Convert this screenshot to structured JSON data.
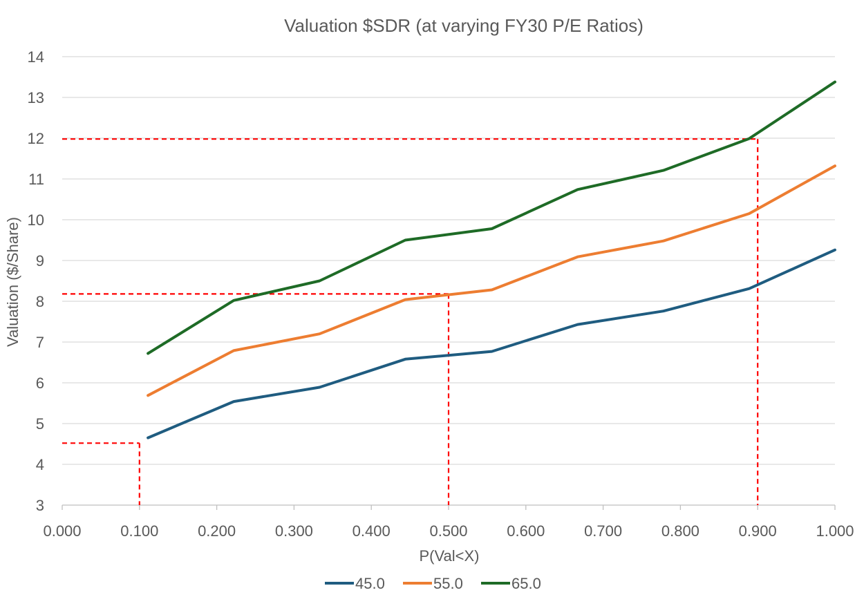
{
  "chart_data": {
    "type": "line",
    "title": "Valuation  $SDR (at varying FY30 P/E Ratios)",
    "xlabel": "P(Val<X)",
    "ylabel": "Valuation ($/Share)",
    "xlim": [
      0,
      1
    ],
    "ylim": [
      3,
      14
    ],
    "xticks": [
      0.0,
      0.1,
      0.2,
      0.3,
      0.4,
      0.5,
      0.6,
      0.7,
      0.8,
      0.9,
      1.0
    ],
    "xtick_labels": [
      "0.000",
      "0.100",
      "0.200",
      "0.300",
      "0.400",
      "0.500",
      "0.600",
      "0.700",
      "0.800",
      "0.900",
      "1.000"
    ],
    "yticks": [
      3,
      4,
      5,
      6,
      7,
      8,
      9,
      10,
      11,
      12,
      13,
      14
    ],
    "ytick_labels": [
      "3",
      "4",
      "5",
      "6",
      "7",
      "8",
      "9",
      "10",
      "11",
      "12",
      "13",
      "14"
    ],
    "x": [
      0.111,
      0.222,
      0.333,
      0.444,
      0.556,
      0.667,
      0.778,
      0.889,
      1.0
    ],
    "series": [
      {
        "name": "45.0",
        "color": "#1f5c80",
        "values": [
          4.65,
          5.54,
          5.89,
          6.58,
          6.77,
          7.43,
          7.76,
          8.31,
          9.26
        ]
      },
      {
        "name": "55.0",
        "color": "#ed7d31",
        "values": [
          5.69,
          6.79,
          7.2,
          8.04,
          8.28,
          9.09,
          9.48,
          10.15,
          11.32
        ]
      },
      {
        "name": "65.0",
        "color": "#1e6b26",
        "values": [
          6.72,
          8.02,
          8.5,
          9.5,
          9.78,
          10.74,
          11.21,
          11.99,
          13.38
        ]
      }
    ],
    "grid": true,
    "legend": "bottom",
    "annotations": [
      {
        "type": "dashed-guide",
        "color": "#ff0000",
        "x": 0.1,
        "y": 4.52
      },
      {
        "type": "dashed-guide",
        "color": "#ff0000",
        "x": 0.5,
        "y": 8.18
      },
      {
        "type": "dashed-guide",
        "color": "#ff0000",
        "x": 0.9,
        "y": 11.98
      }
    ]
  }
}
